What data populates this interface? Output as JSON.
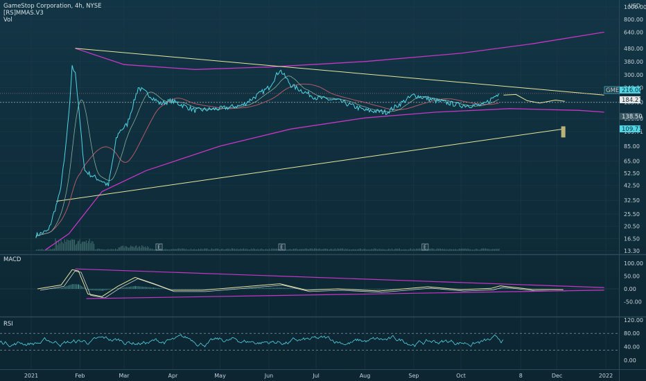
{
  "header": {
    "symbol_line": "GameStop Corporation, 4h, NYSE",
    "indicator_1": "[RS]MMAS.V3",
    "indicator_2": "Vol",
    "currency": "USD"
  },
  "price_scale": {
    "ticks": [
      "1000.00",
      "800.00",
      "640.00",
      "480.00",
      "380.00",
      "300.00",
      "240.00",
      "185.00",
      "138.50",
      "109.71",
      "85.00",
      "65.00",
      "52.50",
      "42.50",
      "32.50",
      "25.50",
      "20.50",
      "16.50",
      "13.30"
    ]
  },
  "badges": {
    "gme": {
      "ticker": "GME",
      "value": "216.00"
    },
    "last": "184.27",
    "level_1": "138.50",
    "level_2": "109.71"
  },
  "earnings_marker": "E",
  "macd": {
    "label": "MACD",
    "ticks": [
      "100.00",
      "50.00",
      "0.00",
      "-50.00"
    ]
  },
  "rsi": {
    "label": "RSI",
    "ticks": [
      "120.00",
      "80.00",
      "40.00",
      "0.00"
    ]
  },
  "time_axis": [
    "2021",
    "Feb",
    "Mar",
    "Apr",
    "May",
    "Jun",
    "Jul",
    "Aug",
    "Sep",
    "Oct",
    "8",
    "Dec",
    "2022"
  ],
  "colors": {
    "price": "#4fd7e6",
    "ma_slow": "#b35a6a",
    "ma_fast": "#8ab0a0",
    "trend_magenta": "#c637c4",
    "trend_yellow": "#e9e6a0",
    "macd_line": "#e9e6a0",
    "signal_line": "#d8d8d8",
    "rsi_line": "#4fd7e6"
  },
  "chart_data": {
    "type": "line",
    "title": "GameStop Corporation, 4h, NYSE",
    "y_scale": "log",
    "ylim": [
      13.3,
      1000
    ],
    "series": [
      {
        "name": "GME",
        "x": [
          "2021-01-04",
          "2021-01-12",
          "2021-01-19",
          "2021-01-22",
          "2021-01-25",
          "2021-01-27",
          "2021-01-29",
          "2021-02-02",
          "2021-02-04",
          "2021-02-09",
          "2021-02-16",
          "2021-02-19",
          "2021-02-24",
          "2021-02-26",
          "2021-03-03",
          "2021-03-10",
          "2021-03-17",
          "2021-03-24",
          "2021-03-31",
          "2021-04-15",
          "2021-05-01",
          "2021-05-15",
          "2021-06-01",
          "2021-06-08",
          "2021-06-15",
          "2021-07-01",
          "2021-07-15",
          "2021-08-01",
          "2021-08-15",
          "2021-09-01",
          "2021-09-15",
          "2021-10-01",
          "2021-10-15",
          "2021-10-25"
        ],
        "values": [
          17.5,
          19,
          36,
          65,
          150,
          345,
          320,
          95,
          55,
          50,
          45,
          42,
          95,
          110,
          125,
          240,
          210,
          180,
          190,
          160,
          165,
          175,
          240,
          330,
          250,
          200,
          190,
          160,
          155,
          210,
          190,
          175,
          175,
          216
        ]
      }
    ],
    "annotations": [
      "GME 216.00",
      "184.27",
      "138.50",
      "109.71"
    ],
    "legend": []
  }
}
